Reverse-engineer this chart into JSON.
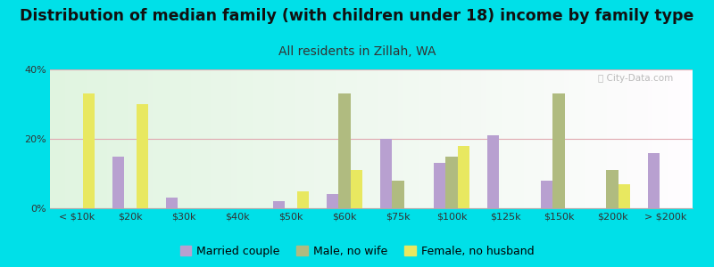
{
  "title": "Distribution of median family (with children under 18) income by family type",
  "subtitle": "All residents in Zillah, WA",
  "categories": [
    "< $10k",
    "$20k",
    "$30k",
    "$40k",
    "$50k",
    "$60k",
    "$75k",
    "$100k",
    "$125k",
    "$150k",
    "$200k",
    "> $200k"
  ],
  "married_couple": [
    0,
    15,
    3,
    0,
    2,
    4,
    20,
    13,
    21,
    8,
    0,
    16
  ],
  "male_no_wife": [
    0,
    0,
    0,
    0,
    0,
    33,
    8,
    15,
    0,
    33,
    11,
    0
  ],
  "female_no_husband": [
    33,
    30,
    0,
    0,
    5,
    11,
    0,
    18,
    0,
    0,
    7,
    0
  ],
  "married_color": "#b8a0d0",
  "male_color": "#b0bb80",
  "female_color": "#e8e860",
  "background_outer": "#00e0e8",
  "grid_color": "#e0a8b0",
  "ylim": [
    0,
    40
  ],
  "bar_width": 0.22,
  "title_fontsize": 12.5,
  "subtitle_fontsize": 10,
  "tick_fontsize": 8,
  "legend_fontsize": 9
}
